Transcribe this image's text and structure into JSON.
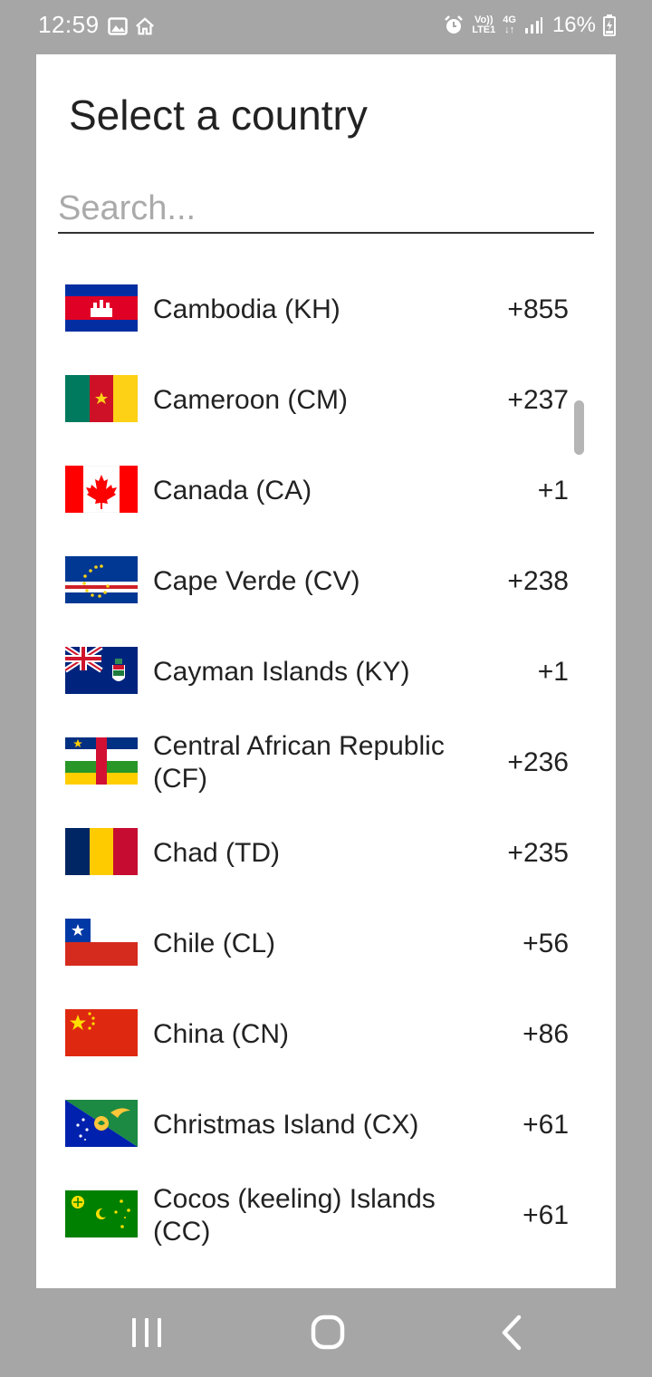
{
  "status_bar": {
    "time": "12:59",
    "network_top": "Vo))",
    "network_bottom": "LTE1",
    "network_type": "4G",
    "battery": "16%",
    "icons": [
      "image-icon",
      "home-icon",
      "alarm-icon",
      "signal-icon",
      "battery-icon"
    ]
  },
  "dialog": {
    "title": "Select a country",
    "search_placeholder": "Search...",
    "search_value": ""
  },
  "countries": [
    {
      "name": "Cambodia (KH)",
      "code": "+855",
      "flag": "kh-flag-icon"
    },
    {
      "name": "Cameroon (CM)",
      "code": "+237",
      "flag": "cm-flag-icon"
    },
    {
      "name": "Canada (CA)",
      "code": "+1",
      "flag": "ca-flag-icon"
    },
    {
      "name": "Cape Verde (CV)",
      "code": "+238",
      "flag": "cv-flag-icon"
    },
    {
      "name": "Cayman Islands (KY)",
      "code": "+1",
      "flag": "ky-flag-icon"
    },
    {
      "name": "Central African Republic (CF)",
      "code": "+236",
      "flag": "cf-flag-icon"
    },
    {
      "name": "Chad (TD)",
      "code": "+235",
      "flag": "td-flag-icon"
    },
    {
      "name": "Chile (CL)",
      "code": "+56",
      "flag": "cl-flag-icon"
    },
    {
      "name": "China (CN)",
      "code": "+86",
      "flag": "cn-flag-icon"
    },
    {
      "name": "Christmas Island (CX)",
      "code": "+61",
      "flag": "cx-flag-icon"
    },
    {
      "name": "Cocos (keeling) Islands (CC)",
      "code": "+61",
      "flag": "cc-flag-icon"
    }
  ],
  "nav_bar": {
    "buttons": [
      "recent-apps-icon",
      "home-button-icon",
      "back-icon"
    ]
  },
  "colors": {
    "background": "#a6a6a6",
    "dialog": "#ffffff",
    "text": "#222222",
    "placeholder": "#aaaaaa"
  }
}
